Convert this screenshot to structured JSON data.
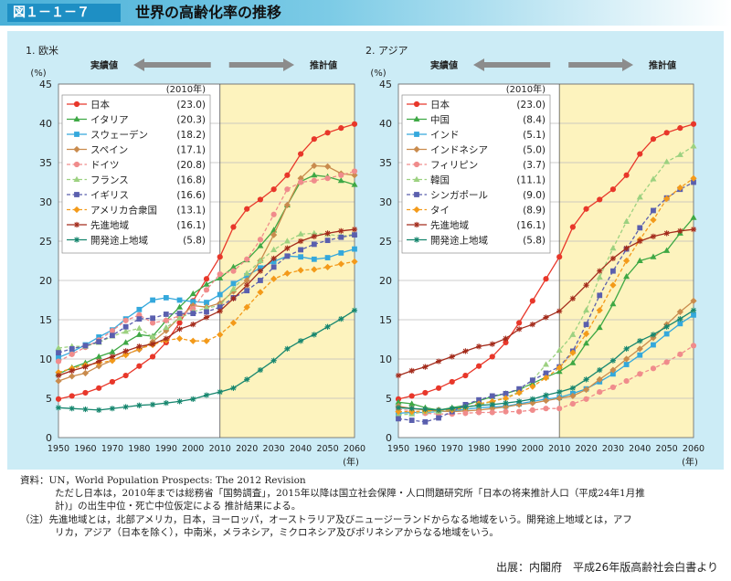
{
  "figure": {
    "number": "図１－１－７",
    "title": "世界の高齢化率の推移",
    "actual_label": "実績値",
    "projected_label": "推計値",
    "y_unit": "(%)",
    "x_unit": "(年)",
    "legend_year": "(2010年)",
    "colors": {
      "header": "#1e8fc4",
      "panel": "#ccecf6",
      "projection_bg": "#fdf3be",
      "arrow": "#8c8c8c"
    }
  },
  "notes": [
    "資料：UN，World Population Prospects: The 2012 Revision",
    "ただし日本は，2010年までは総務省「国勢調査」，2015年以降は国立社会保障・人口問題研究所「日本の将来推計人口（平成24年1月推",
    "計)」の出生中位・死亡中位仮定による 推計結果による。",
    "（注）先進地域とは，北部アメリカ，日本，ヨーロッパ，オーストラリア及びニュージーランドからなる地域をいう。開発途上地域とは，アフ",
    "リカ，アジア（日本を除く），中南米，メラネシア，ミクロネシア及びポリネシアからなる地域をいう。"
  ],
  "source": "出展：内閣府　平成26年版高齢社会白書より",
  "chart_data": [
    {
      "type": "line",
      "title": "1. 欧米",
      "xlabel": "(年)",
      "ylabel": "(%)",
      "ylim": [
        0,
        45
      ],
      "x": [
        1950,
        1955,
        1960,
        1965,
        1970,
        1975,
        1980,
        1985,
        1990,
        1995,
        2000,
        2005,
        2010,
        2015,
        2020,
        2025,
        2030,
        2035,
        2040,
        2045,
        2050,
        2055,
        2060
      ],
      "x_ticks": [
        1950,
        1960,
        1970,
        1980,
        1990,
        2000,
        2010,
        2020,
        2030,
        2040,
        2050,
        2060
      ],
      "y_ticks": [
        0,
        5,
        10,
        15,
        20,
        25,
        30,
        35,
        40,
        45
      ],
      "projection_start": 2010,
      "legend_position": "top-left",
      "series": [
        {
          "name": "日本",
          "value_2010": "(23.0)",
          "color": "#e8372a",
          "marker": "circle",
          "dash": false,
          "values": [
            4.9,
            5.3,
            5.7,
            6.3,
            7.1,
            7.9,
            9.1,
            10.3,
            12.1,
            14.6,
            17.4,
            20.2,
            23.0,
            26.8,
            29.1,
            30.3,
            31.6,
            33.4,
            36.1,
            38.0,
            38.8,
            39.4,
            39.9
          ]
        },
        {
          "name": "イタリア",
          "value_2010": "(20.3)",
          "color": "#3ea844",
          "marker": "triangle",
          "dash": false,
          "values": [
            8.1,
            8.9,
            9.5,
            10.3,
            10.9,
            12.1,
            13.1,
            12.9,
            14.9,
            16.6,
            18.3,
            19.5,
            20.3,
            21.7,
            22.6,
            24.4,
            26.4,
            29.6,
            32.6,
            33.4,
            33.2,
            32.7,
            32.2
          ]
        },
        {
          "name": "スウェーデン",
          "value_2010": "(18.2)",
          "color": "#34a8dc",
          "marker": "square",
          "dash": false,
          "values": [
            10.2,
            10.9,
            11.8,
            12.8,
            13.7,
            15.1,
            16.3,
            17.5,
            17.8,
            17.5,
            17.3,
            17.2,
            18.2,
            19.6,
            20.6,
            21.6,
            22.4,
            23.1,
            23.0,
            22.7,
            22.9,
            23.5,
            24.0
          ]
        },
        {
          "name": "スペイン",
          "value_2010": "(17.1)",
          "color": "#c98b4d",
          "marker": "diamond",
          "dash": false,
          "values": [
            7.2,
            7.8,
            8.2,
            9.1,
            9.8,
            10.6,
            11.2,
            12.2,
            13.6,
            15.3,
            16.8,
            16.6,
            17.1,
            18.6,
            20.0,
            22.5,
            25.8,
            29.6,
            33.0,
            34.6,
            34.5,
            33.6,
            33.4
          ]
        },
        {
          "name": "ドイツ",
          "value_2010": "(20.8)",
          "color": "#f08c8c",
          "marker": "circle",
          "dash": true,
          "values": [
            9.7,
            10.6,
            11.5,
            12.4,
            13.6,
            14.9,
            15.6,
            14.6,
            14.9,
            15.5,
            16.4,
            18.8,
            20.8,
            21.2,
            22.7,
            25.2,
            28.4,
            31.6,
            32.5,
            32.7,
            33.0,
            33.4,
            33.9
          ]
        },
        {
          "name": "フランス",
          "value_2010": "(16.8)",
          "color": "#9cd180",
          "marker": "triangle",
          "dash": true,
          "values": [
            11.4,
            11.6,
            11.6,
            12.1,
            12.9,
            13.5,
            13.9,
            12.8,
            14.0,
            15.2,
            16.0,
            16.5,
            16.8,
            18.9,
            20.9,
            22.5,
            23.9,
            25.0,
            25.9,
            26.0,
            25.9,
            25.6,
            25.9
          ]
        },
        {
          "name": "イギリス",
          "value_2010": "(16.6)",
          "color": "#5a5fae",
          "marker": "square",
          "dash": true,
          "values": [
            10.8,
            11.3,
            11.7,
            12.2,
            13.0,
            14.1,
            15.1,
            15.2,
            15.7,
            15.8,
            15.8,
            16.0,
            16.6,
            17.8,
            18.7,
            20.0,
            21.7,
            23.1,
            23.9,
            24.6,
            25.1,
            25.5,
            25.8
          ]
        },
        {
          "name": "アメリカ合衆国",
          "value_2010": "(13.1)",
          "color": "#f39a1a",
          "marker": "diamond",
          "dash": true,
          "values": [
            8.3,
            8.8,
            9.2,
            9.5,
            9.8,
            10.5,
            11.3,
            11.8,
            12.4,
            12.6,
            12.3,
            12.3,
            13.1,
            14.6,
            16.6,
            18.5,
            20.2,
            20.9,
            21.3,
            21.4,
            21.7,
            22.1,
            22.4
          ]
        },
        {
          "name": "先進地域",
          "value_2010": "(16.1)",
          "color": "#a42c1c",
          "marker": "star",
          "dash": false,
          "values": [
            7.9,
            8.5,
            9.0,
            9.7,
            10.3,
            11.0,
            11.6,
            11.9,
            12.6,
            13.8,
            14.4,
            15.3,
            16.1,
            17.7,
            19.4,
            21.2,
            22.8,
            24.1,
            25.0,
            25.6,
            26.0,
            26.3,
            26.5
          ]
        },
        {
          "name": "開発途上地域",
          "value_2010": "(5.8)",
          "color": "#16866e",
          "marker": "star",
          "dash": false,
          "values": [
            3.8,
            3.7,
            3.6,
            3.5,
            3.7,
            3.9,
            4.1,
            4.2,
            4.4,
            4.6,
            4.9,
            5.4,
            5.8,
            6.3,
            7.4,
            8.6,
            9.8,
            11.3,
            12.3,
            13.1,
            14.1,
            15.1,
            16.2
          ]
        }
      ]
    },
    {
      "type": "line",
      "title": "2. アジア",
      "xlabel": "(年)",
      "ylabel": "(%)",
      "ylim": [
        0,
        45
      ],
      "x": [
        1950,
        1955,
        1960,
        1965,
        1970,
        1975,
        1980,
        1985,
        1990,
        1995,
        2000,
        2005,
        2010,
        2015,
        2020,
        2025,
        2030,
        2035,
        2040,
        2045,
        2050,
        2055,
        2060
      ],
      "x_ticks": [
        1950,
        1960,
        1970,
        1980,
        1990,
        2000,
        2010,
        2020,
        2030,
        2040,
        2050,
        2060
      ],
      "y_ticks": [
        0,
        5,
        10,
        15,
        20,
        25,
        30,
        35,
        40,
        45
      ],
      "projection_start": 2010,
      "legend_position": "top-left",
      "series": [
        {
          "name": "日本",
          "value_2010": "(23.0)",
          "color": "#e8372a",
          "marker": "circle",
          "dash": false,
          "values": [
            4.9,
            5.3,
            5.7,
            6.3,
            7.1,
            7.9,
            9.1,
            10.3,
            12.1,
            14.6,
            17.4,
            20.2,
            23.0,
            26.8,
            29.1,
            30.3,
            31.6,
            33.4,
            36.1,
            38.0,
            38.8,
            39.4,
            39.9
          ]
        },
        {
          "name": "中国",
          "value_2010": "(8.4)",
          "color": "#3ea844",
          "marker": "triangle",
          "dash": false,
          "values": [
            4.5,
            4.3,
            3.8,
            3.5,
            3.8,
            4.1,
            4.7,
            5.2,
            5.6,
            6.1,
            6.9,
            7.7,
            8.4,
            9.5,
            12.0,
            14.0,
            17.0,
            20.5,
            22.5,
            23.0,
            23.8,
            26.0,
            28.0
          ]
        },
        {
          "name": "インド",
          "value_2010": "(5.1)",
          "color": "#34a8dc",
          "marker": "square",
          "dash": false,
          "values": [
            3.1,
            3.2,
            3.2,
            3.3,
            3.4,
            3.6,
            3.8,
            3.9,
            4.0,
            4.3,
            4.6,
            4.9,
            5.1,
            5.6,
            6.2,
            7.1,
            8.1,
            9.3,
            10.5,
            11.8,
            13.2,
            14.5,
            15.6
          ]
        },
        {
          "name": "インドネシア",
          "value_2010": "(5.0)",
          "color": "#c98b4d",
          "marker": "diamond",
          "dash": false,
          "values": [
            4.0,
            3.7,
            3.5,
            3.4,
            3.3,
            3.4,
            3.5,
            3.7,
            3.9,
            4.2,
            4.4,
            4.7,
            5.0,
            5.3,
            6.1,
            7.4,
            8.6,
            10.0,
            11.3,
            12.7,
            14.4,
            16.0,
            17.4
          ]
        },
        {
          "name": "フィリピン",
          "value_2010": "(3.7)",
          "color": "#f08c8c",
          "marker": "circle",
          "dash": true,
          "values": [
            3.6,
            3.4,
            3.1,
            3.0,
            3.0,
            3.1,
            3.2,
            3.2,
            3.3,
            3.3,
            3.5,
            3.7,
            3.7,
            4.3,
            4.9,
            5.8,
            6.4,
            7.2,
            8.1,
            8.8,
            9.6,
            10.6,
            11.7
          ]
        },
        {
          "name": "韓国",
          "value_2010": "(11.1)",
          "color": "#9cd180",
          "marker": "triangle",
          "dash": true,
          "values": [
            2.9,
            3.0,
            3.3,
            3.3,
            3.6,
            3.9,
            4.1,
            4.6,
            5.1,
            5.8,
            7.3,
            9.3,
            11.1,
            13.1,
            16.2,
            20.4,
            24.1,
            27.5,
            30.6,
            32.9,
            35.1,
            36.0,
            37.1
          ]
        },
        {
          "name": "シンガポール",
          "value_2010": "(9.0)",
          "color": "#5a5fae",
          "marker": "square",
          "dash": true,
          "values": [
            2.4,
            2.2,
            2.0,
            2.5,
            3.3,
            4.2,
            4.8,
            5.3,
            5.6,
            6.2,
            7.3,
            8.2,
            9.0,
            11.0,
            14.4,
            18.1,
            21.2,
            24.0,
            26.7,
            28.9,
            30.5,
            31.6,
            32.5
          ]
        },
        {
          "name": "タイ",
          "value_2010": "(8.9)",
          "color": "#f39a1a",
          "marker": "diamond",
          "dash": true,
          "values": [
            3.3,
            3.3,
            3.4,
            3.5,
            3.5,
            3.8,
            4.3,
            4.6,
            5.0,
            5.7,
            6.5,
            7.6,
            8.9,
            10.8,
            13.2,
            16.2,
            19.4,
            22.5,
            25.2,
            27.7,
            30.4,
            31.8,
            33.0
          ]
        },
        {
          "name": "先進地域",
          "value_2010": "(16.1)",
          "color": "#a42c1c",
          "marker": "star",
          "dash": false,
          "values": [
            7.9,
            8.5,
            9.0,
            9.7,
            10.3,
            11.0,
            11.6,
            11.9,
            12.6,
            13.8,
            14.4,
            15.3,
            16.1,
            17.7,
            19.4,
            21.2,
            22.8,
            24.1,
            25.0,
            25.6,
            26.0,
            26.3,
            26.5
          ]
        },
        {
          "name": "開発途上地域",
          "value_2010": "(5.8)",
          "color": "#16866e",
          "marker": "star",
          "dash": false,
          "values": [
            3.8,
            3.7,
            3.6,
            3.5,
            3.7,
            3.9,
            4.1,
            4.2,
            4.4,
            4.6,
            4.9,
            5.4,
            5.8,
            6.3,
            7.4,
            8.6,
            9.8,
            11.3,
            12.3,
            13.1,
            14.1,
            15.1,
            16.2
          ]
        }
      ]
    }
  ]
}
